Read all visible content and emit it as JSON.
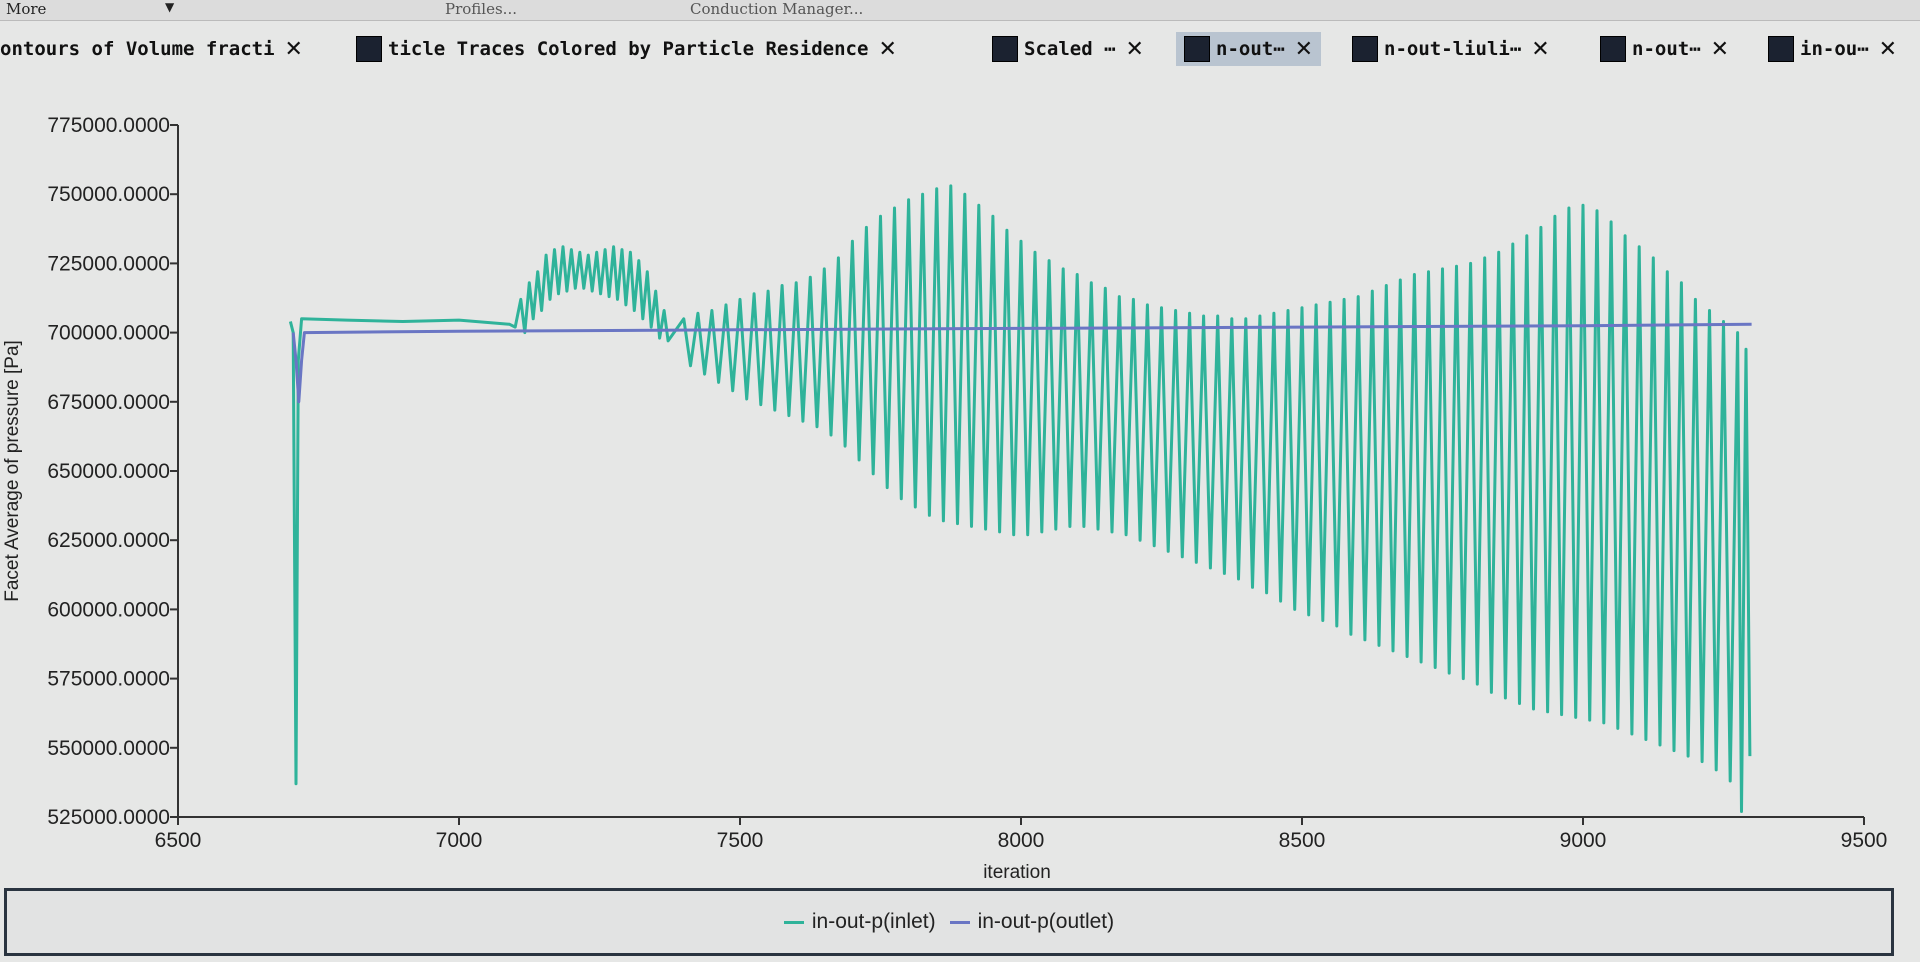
{
  "toolbar": {
    "more_label": "More",
    "profiles_label": "Profiles...",
    "conduction_label": "Conduction Manager..."
  },
  "tabs": [
    {
      "label": "ontours of Volume fracti",
      "active": false
    },
    {
      "label": "ticle Traces Colored by Particle Residence",
      "active": false
    },
    {
      "label": "Scaled ⋯",
      "active": false
    },
    {
      "label": "n-out⋯",
      "active": true
    },
    {
      "label": "n-out-liuli⋯",
      "active": false
    },
    {
      "label": "n-out⋯",
      "active": false
    },
    {
      "label": "in-ou⋯",
      "active": false
    }
  ],
  "chart_data": {
    "type": "line",
    "title": "",
    "xlabel": "iteration",
    "ylabel": "Facet Average of pressure [Pa]",
    "xlim": [
      6500,
      9500
    ],
    "ylim": [
      525000,
      775000
    ],
    "xticks": [
      "6500",
      "7000",
      "7500",
      "8000",
      "8500",
      "9000",
      "9500"
    ],
    "yticks": [
      "525000.0000",
      "550000.0000",
      "575000.0000",
      "600000.0000",
      "625000.0000",
      "650000.0000",
      "675000.0000",
      "700000.0000",
      "725000.0000",
      "750000.0000",
      "775000.0000"
    ],
    "grid": false,
    "legend_position": "bottom",
    "series": [
      {
        "name": "in-out-p(inlet)",
        "color": "#2fb39a",
        "points": [
          [
            6700,
            704000
          ],
          [
            6705,
            700000
          ],
          [
            6710,
            537000
          ],
          [
            6714,
            690000
          ],
          [
            6720,
            705000
          ],
          [
            6800,
            704500
          ],
          [
            6900,
            704000
          ],
          [
            7000,
            704500
          ],
          [
            7090,
            703000
          ],
          [
            7100,
            702000
          ],
          [
            7110,
            712000
          ],
          [
            7117,
            700000
          ],
          [
            7125,
            718000
          ],
          [
            7132,
            705000
          ],
          [
            7140,
            722000
          ],
          [
            7147,
            708000
          ],
          [
            7155,
            728000
          ],
          [
            7162,
            712000
          ],
          [
            7170,
            730000
          ],
          [
            7177,
            714000
          ],
          [
            7185,
            731000
          ],
          [
            7192,
            715000
          ],
          [
            7200,
            730000
          ],
          [
            7207,
            716000
          ],
          [
            7215,
            729000
          ],
          [
            7222,
            716000
          ],
          [
            7230,
            728000
          ],
          [
            7237,
            715000
          ],
          [
            7245,
            729000
          ],
          [
            7252,
            714000
          ],
          [
            7260,
            730000
          ],
          [
            7267,
            713000
          ],
          [
            7275,
            731000
          ],
          [
            7282,
            712000
          ],
          [
            7290,
            730000
          ],
          [
            7297,
            710000
          ],
          [
            7305,
            729000
          ],
          [
            7312,
            708000
          ],
          [
            7320,
            726000
          ],
          [
            7327,
            705000
          ],
          [
            7335,
            722000
          ],
          [
            7342,
            702000
          ],
          [
            7350,
            715000
          ],
          [
            7357,
            698000
          ],
          [
            7365,
            708000
          ],
          [
            7372,
            697000
          ],
          [
            7400,
            705000
          ],
          [
            7412,
            688000
          ],
          [
            7425,
            707000
          ],
          [
            7437,
            685000
          ],
          [
            7450,
            708000
          ],
          [
            7462,
            682000
          ],
          [
            7475,
            710000
          ],
          [
            7487,
            679000
          ],
          [
            7500,
            712000
          ],
          [
            7512,
            676000
          ],
          [
            7525,
            714000
          ],
          [
            7537,
            674000
          ],
          [
            7550,
            715000
          ],
          [
            7562,
            672000
          ],
          [
            7575,
            717000
          ],
          [
            7587,
            670000
          ],
          [
            7600,
            718000
          ],
          [
            7612,
            668000
          ],
          [
            7625,
            720000
          ],
          [
            7637,
            666000
          ],
          [
            7650,
            723000
          ],
          [
            7662,
            663000
          ],
          [
            7675,
            727000
          ],
          [
            7687,
            659000
          ],
          [
            7700,
            733000
          ],
          [
            7712,
            654000
          ],
          [
            7725,
            738000
          ],
          [
            7737,
            649000
          ],
          [
            7750,
            742000
          ],
          [
            7762,
            644000
          ],
          [
            7775,
            745000
          ],
          [
            7787,
            640000
          ],
          [
            7800,
            748000
          ],
          [
            7812,
            637000
          ],
          [
            7825,
            750000
          ],
          [
            7837,
            634000
          ],
          [
            7850,
            752000
          ],
          [
            7862,
            632000
          ],
          [
            7875,
            753000
          ],
          [
            7887,
            631000
          ],
          [
            7900,
            750000
          ],
          [
            7912,
            630000
          ],
          [
            7925,
            746000
          ],
          [
            7937,
            629000
          ],
          [
            7950,
            742000
          ],
          [
            7962,
            628000
          ],
          [
            7975,
            737000
          ],
          [
            7987,
            627000
          ],
          [
            8000,
            733000
          ],
          [
            8012,
            627000
          ],
          [
            8025,
            729000
          ],
          [
            8037,
            628000
          ],
          [
            8050,
            726000
          ],
          [
            8062,
            629000
          ],
          [
            8075,
            723000
          ],
          [
            8087,
            630000
          ],
          [
            8100,
            721000
          ],
          [
            8112,
            630000
          ],
          [
            8125,
            718000
          ],
          [
            8137,
            629000
          ],
          [
            8150,
            716000
          ],
          [
            8162,
            628000
          ],
          [
            8175,
            713000
          ],
          [
            8187,
            627000
          ],
          [
            8200,
            712000
          ],
          [
            8212,
            625000
          ],
          [
            8225,
            710000
          ],
          [
            8237,
            623000
          ],
          [
            8250,
            709000
          ],
          [
            8262,
            621000
          ],
          [
            8275,
            708000
          ],
          [
            8287,
            619000
          ],
          [
            8300,
            707000
          ],
          [
            8312,
            617000
          ],
          [
            8325,
            706000
          ],
          [
            8337,
            615000
          ],
          [
            8350,
            706000
          ],
          [
            8362,
            613000
          ],
          [
            8375,
            705000
          ],
          [
            8387,
            611000
          ],
          [
            8400,
            705000
          ],
          [
            8412,
            608000
          ],
          [
            8425,
            706000
          ],
          [
            8437,
            606000
          ],
          [
            8450,
            707000
          ],
          [
            8462,
            603000
          ],
          [
            8475,
            708000
          ],
          [
            8487,
            600000
          ],
          [
            8500,
            709000
          ],
          [
            8512,
            598000
          ],
          [
            8525,
            710000
          ],
          [
            8537,
            596000
          ],
          [
            8550,
            711000
          ],
          [
            8562,
            594000
          ],
          [
            8575,
            712000
          ],
          [
            8587,
            591000
          ],
          [
            8600,
            713000
          ],
          [
            8612,
            589000
          ],
          [
            8625,
            715000
          ],
          [
            8637,
            587000
          ],
          [
            8650,
            717000
          ],
          [
            8662,
            585000
          ],
          [
            8675,
            719000
          ],
          [
            8687,
            583000
          ],
          [
            8700,
            721000
          ],
          [
            8712,
            581000
          ],
          [
            8725,
            722000
          ],
          [
            8737,
            579000
          ],
          [
            8750,
            723000
          ],
          [
            8762,
            577000
          ],
          [
            8775,
            724000
          ],
          [
            8787,
            575000
          ],
          [
            8800,
            725000
          ],
          [
            8812,
            573000
          ],
          [
            8825,
            727000
          ],
          [
            8837,
            570000
          ],
          [
            8850,
            729000
          ],
          [
            8862,
            568000
          ],
          [
            8875,
            732000
          ],
          [
            8887,
            566000
          ],
          [
            8900,
            735000
          ],
          [
            8912,
            564000
          ],
          [
            8925,
            738000
          ],
          [
            8937,
            563000
          ],
          [
            8950,
            742000
          ],
          [
            8962,
            562000
          ],
          [
            8975,
            745000
          ],
          [
            8987,
            561000
          ],
          [
            9000,
            746000
          ],
          [
            9012,
            560000
          ],
          [
            9025,
            744000
          ],
          [
            9037,
            559000
          ],
          [
            9050,
            740000
          ],
          [
            9062,
            557000
          ],
          [
            9075,
            735000
          ],
          [
            9087,
            555000
          ],
          [
            9100,
            731000
          ],
          [
            9112,
            553000
          ],
          [
            9125,
            727000
          ],
          [
            9137,
            551000
          ],
          [
            9150,
            722000
          ],
          [
            9162,
            549000
          ],
          [
            9175,
            718000
          ],
          [
            9187,
            547000
          ],
          [
            9200,
            712000
          ],
          [
            9212,
            545000
          ],
          [
            9225,
            708000
          ],
          [
            9237,
            542000
          ],
          [
            9250,
            704000
          ],
          [
            9262,
            538000
          ],
          [
            9275,
            700000
          ],
          [
            9282,
            527000
          ],
          [
            9290,
            694000
          ],
          [
            9297,
            547000
          ]
        ]
      },
      {
        "name": "in-out-p(outlet)",
        "color": "#6a76c4",
        "points": [
          [
            6705,
            700000
          ],
          [
            6710,
            690000
          ],
          [
            6715,
            675000
          ],
          [
            6720,
            690000
          ],
          [
            6725,
            700000
          ],
          [
            7000,
            700500
          ],
          [
            7500,
            701000
          ],
          [
            8000,
            701500
          ],
          [
            8500,
            702000
          ],
          [
            9000,
            702500
          ],
          [
            9300,
            703000
          ]
        ]
      }
    ]
  }
}
